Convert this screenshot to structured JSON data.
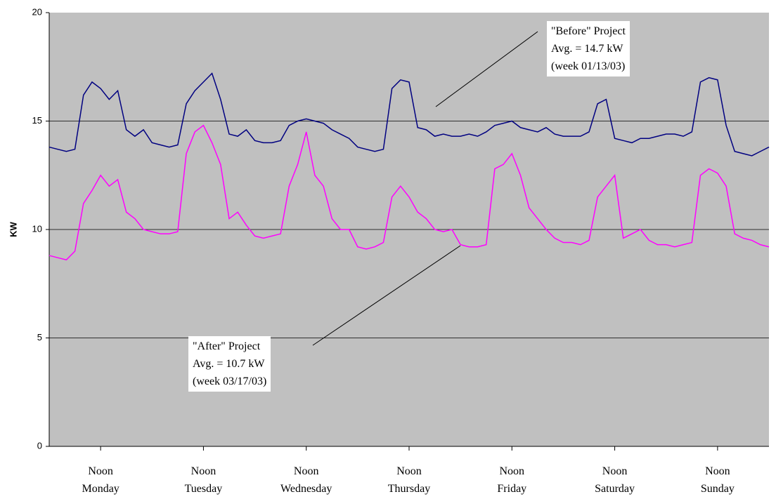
{
  "chart_data": {
    "type": "line",
    "y_label": "KW",
    "x": [
      0,
      2,
      4,
      6,
      8,
      10,
      12,
      14,
      16,
      18,
      20,
      22,
      24,
      26,
      28,
      30,
      32,
      34,
      36,
      38,
      40,
      42,
      44,
      46,
      48,
      50,
      52,
      54,
      56,
      58,
      60,
      62,
      64,
      66,
      68,
      70,
      72,
      74,
      76,
      78,
      80,
      82,
      84,
      86,
      88,
      90,
      92,
      94,
      96,
      98,
      100,
      102,
      104,
      106,
      108,
      110,
      112,
      114,
      116,
      118,
      120,
      122,
      124,
      126,
      128,
      130,
      132,
      134,
      136,
      138,
      140,
      142,
      144,
      146,
      148,
      150,
      152,
      154,
      156,
      158,
      160,
      162,
      164,
      166,
      168
    ],
    "series": [
      {
        "name": "\"Before\" Project",
        "color": "#000080",
        "values": [
          13.8,
          13.7,
          13.6,
          13.7,
          16.2,
          16.8,
          16.5,
          16.0,
          16.4,
          14.6,
          14.3,
          14.6,
          14.0,
          13.9,
          13.8,
          13.9,
          15.8,
          16.4,
          16.8,
          17.2,
          16.0,
          14.4,
          14.3,
          14.6,
          14.1,
          14.0,
          14.0,
          14.1,
          14.8,
          15.0,
          15.1,
          15.0,
          14.9,
          14.6,
          14.4,
          14.2,
          13.8,
          13.7,
          13.6,
          13.7,
          16.5,
          16.9,
          16.8,
          14.7,
          14.6,
          14.3,
          14.4,
          14.3,
          14.3,
          14.4,
          14.3,
          14.5,
          14.8,
          14.9,
          15.0,
          14.7,
          14.6,
          14.5,
          14.7,
          14.4,
          14.3,
          14.3,
          14.3,
          14.5,
          15.8,
          16.0,
          14.2,
          14.1,
          14.0,
          14.2,
          14.2,
          14.3,
          14.4,
          14.4,
          14.3,
          14.5,
          16.8,
          17.0,
          16.9,
          14.8,
          13.6,
          13.5,
          13.4,
          13.6,
          13.8
        ]
      },
      {
        "name": "\"After\" Project",
        "color": "#ff00ff",
        "values": [
          8.8,
          8.7,
          8.6,
          9.0,
          11.2,
          11.8,
          12.5,
          12.0,
          12.3,
          10.8,
          10.5,
          10.0,
          9.9,
          9.8,
          9.8,
          9.9,
          13.5,
          14.5,
          14.8,
          14.0,
          13.0,
          10.5,
          10.8,
          10.2,
          9.7,
          9.6,
          9.7,
          9.8,
          12.0,
          13.0,
          14.5,
          12.5,
          12.0,
          10.5,
          10.0,
          10.0,
          9.2,
          9.1,
          9.2,
          9.4,
          11.5,
          12.0,
          11.5,
          10.8,
          10.5,
          10.0,
          9.9,
          10.0,
          9.3,
          9.2,
          9.2,
          9.3,
          12.8,
          13.0,
          13.5,
          12.5,
          11.0,
          10.5,
          10.0,
          9.6,
          9.4,
          9.4,
          9.3,
          9.5,
          11.5,
          12.0,
          12.5,
          9.6,
          9.8,
          10.0,
          9.5,
          9.3,
          9.3,
          9.2,
          9.3,
          9.4,
          12.5,
          12.8,
          12.6,
          12.0,
          9.8,
          9.6,
          9.5,
          9.3,
          9.2
        ]
      }
    ],
    "xlim": [
      0,
      168
    ],
    "xticks": [
      {
        "value": 12,
        "label": "Noon\nMonday"
      },
      {
        "value": 36,
        "label": "Noon\nTuesday"
      },
      {
        "value": 60,
        "label": "Noon\nWednesday"
      },
      {
        "value": 84,
        "label": "Noon\nThursday"
      },
      {
        "value": 108,
        "label": "Noon\nFriday"
      },
      {
        "value": 132,
        "label": "Noon\nSaturday"
      },
      {
        "value": 156,
        "label": "Noon\nSunday"
      }
    ],
    "ylim": [
      0,
      20
    ],
    "yticks": [
      0,
      5,
      10,
      15,
      20
    ],
    "grid": true,
    "background": "#c0c0c0",
    "annotations": [
      {
        "lines": [
          "\"Before\" Project",
          "Avg. = 14.7 kW",
          "(week 01/13/03)"
        ]
      },
      {
        "lines": [
          "\"After\" Project",
          "Avg. = 10.7 kW",
          "(week 03/17/03)"
        ]
      }
    ]
  }
}
